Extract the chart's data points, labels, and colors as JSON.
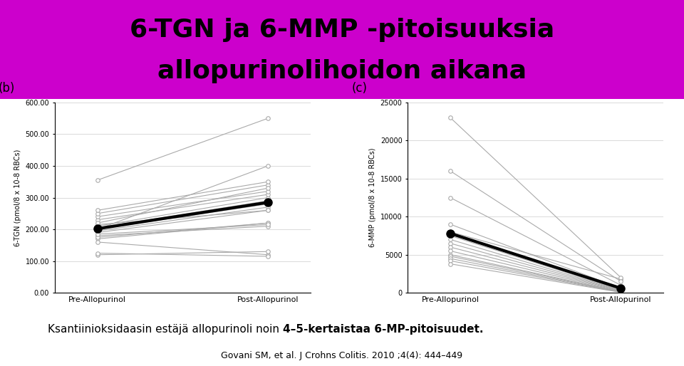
{
  "title_line1": "6-TGN ja 6-MMP -pitoisuuksia",
  "title_line2": "allopurinolihoidon aikana",
  "title_bg_color": "#CC00CC",
  "title_text_color": "#000000",
  "title_fontsize": 26,
  "subtitle_text_normal": "Ksantiinioksidaasin estäjä allopurinoli noin ",
  "subtitle_text_bold": "4–5-kertaistaa 6-MP-pitoisuudet.",
  "citation_text": "Govani SM, et al. J Crohns Colitis. 2010 ;4(4): 444–449",
  "panel_b_label": "(b)",
  "panel_c_label": "(c)",
  "panel_b_ylabel": "6-TGN (pmol/8 x 10-8 RBCs)",
  "panel_c_ylabel": "6-MMP (pmol/8 x 10-8 RBCs)",
  "xlabel": [
    "Pre-Allopurinol",
    "Post-Allopurinol"
  ],
  "panel_b_ylim": [
    0,
    600
  ],
  "panel_b_yticks": [
    0,
    100,
    200,
    300,
    400,
    500,
    600
  ],
  "panel_b_yticklabels": [
    "0.00",
    "100.00",
    "200.00",
    "300.00",
    "400.00",
    "500.00",
    "600.00"
  ],
  "panel_c_ylim": [
    0,
    25000
  ],
  "panel_c_yticks": [
    0,
    5000,
    10000,
    15000,
    20000,
    25000
  ],
  "panel_c_yticklabels": [
    "0",
    "5000",
    "10000",
    "15000",
    "20000",
    "25000"
  ],
  "panel_b_individual_pre": [
    200,
    205,
    195,
    210,
    190,
    230,
    240,
    180,
    170,
    160,
    250,
    260,
    215,
    220,
    175,
    185,
    355,
    200,
    120,
    125
  ],
  "panel_b_individual_post": [
    280,
    290,
    270,
    300,
    260,
    310,
    320,
    210,
    220,
    120,
    340,
    350,
    260,
    330,
    220,
    215,
    550,
    400,
    130,
    115
  ],
  "panel_b_mean_pre": 202,
  "panel_b_mean_post": 285,
  "panel_c_individual_pre": [
    8000,
    7800,
    7500,
    7000,
    6500,
    6000,
    5500,
    5000,
    4800,
    4500,
    4200,
    3800,
    9000,
    23000,
    16000,
    12500
  ],
  "panel_c_individual_post": [
    1800,
    500,
    400,
    350,
    300,
    250,
    200,
    150,
    120,
    100,
    80,
    60,
    600,
    2000,
    1500,
    1000
  ],
  "panel_c_mean_pre": 7800,
  "panel_c_mean_post": 600,
  "line_color_individual": "#aaaaaa",
  "line_color_mean": "#000000",
  "marker_color_mean": "#000000",
  "bg_color": "#ffffff",
  "font_color": "#000000"
}
